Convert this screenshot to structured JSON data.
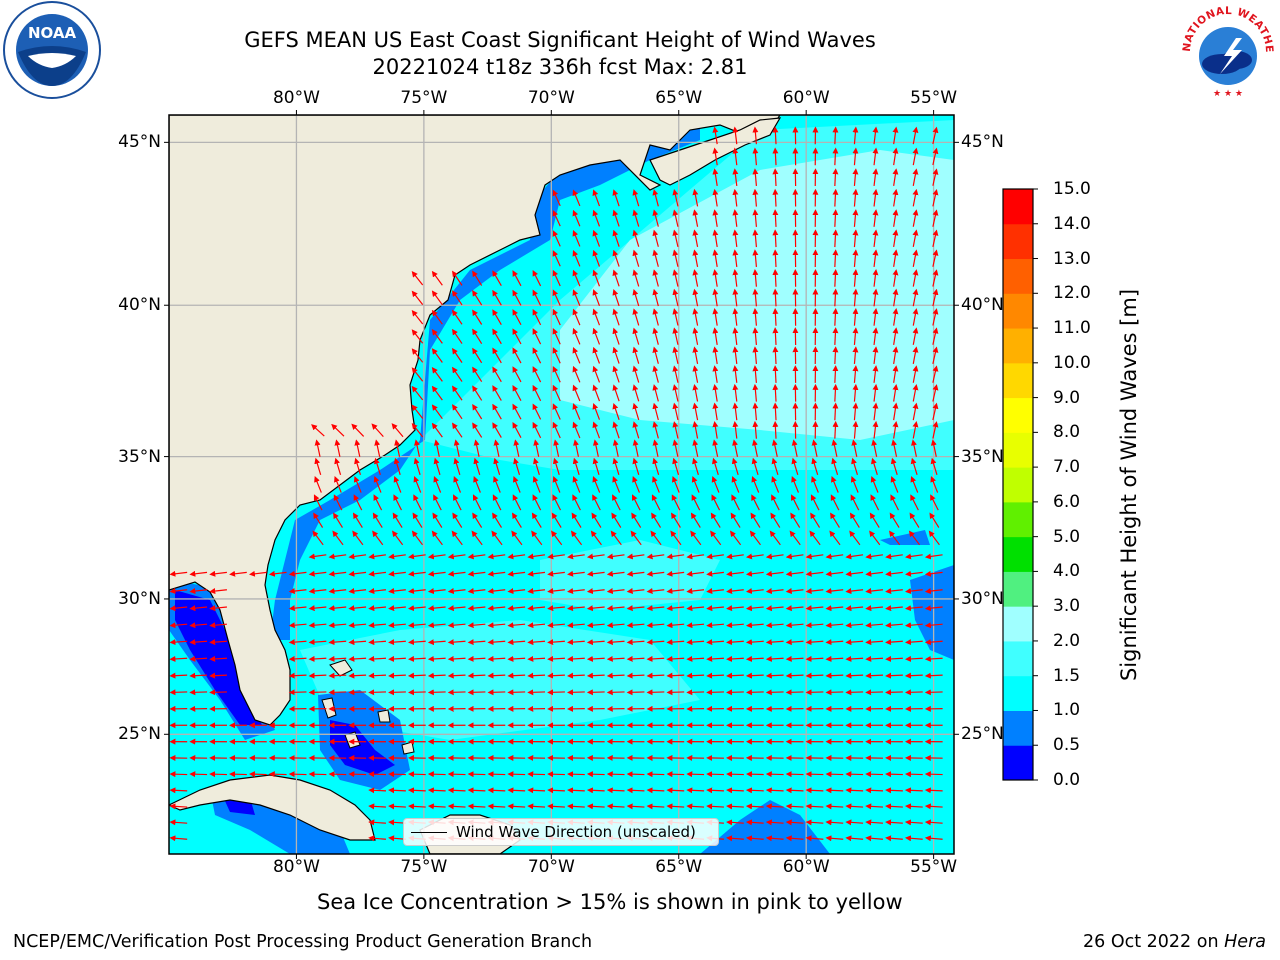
{
  "header": {
    "title_line1": "GEFS MEAN US East Coast Significant Height of Wind Waves",
    "title_line2": "20221024 t18z 336h fcst   Max: 2.81"
  },
  "logos": {
    "left": {
      "icon": "noaa-logo-icon",
      "text": "NOAA"
    },
    "right": {
      "icon": "nws-logo-icon",
      "text": "NATIONAL WEATHER SERVICE"
    }
  },
  "map": {
    "lon_range": [
      -85,
      -54.2
    ],
    "lat_range": [
      20.4,
      45.8
    ],
    "lon_ticks": [
      "80°W",
      "75°W",
      "70°W",
      "65°W",
      "60°W",
      "55°W"
    ],
    "lon_tick_values": [
      -80,
      -75,
      -70,
      -65,
      -60,
      -55
    ],
    "lat_ticks": [
      "45°N",
      "40°N",
      "35°N",
      "30°N",
      "25°N"
    ],
    "lat_tick_values": [
      45,
      40,
      35,
      30,
      25
    ],
    "gridlines": true,
    "land_color": "#efecdc",
    "arrow_color": "#ff0000",
    "legend_label": "Wind Wave Direction (unscaled)",
    "legend_placement": "bottom-center"
  },
  "colorbar": {
    "title": "Significant Height of Wind Waves [m]",
    "range": [
      0,
      15
    ],
    "levels": [
      0.0,
      0.5,
      1.0,
      1.5,
      2.0,
      3.0,
      4.0,
      5.0,
      6.0,
      7.0,
      8.0,
      9.0,
      10.0,
      11.0,
      12.0,
      13.0,
      14.0,
      15.0
    ],
    "tick_labels": [
      "0.0",
      "0.5",
      "1.0",
      "1.5",
      "2.0",
      "3.0",
      "4.0",
      "5.0",
      "6.0",
      "7.0",
      "8.0",
      "9.0",
      "10.0",
      "11.0",
      "12.0",
      "13.0",
      "14.0",
      "15.0"
    ],
    "colors": [
      "#0000ff",
      "#0080ff",
      "#00ffff",
      "#40ffff",
      "#a0ffff",
      "#50f080",
      "#00e000",
      "#60f000",
      "#c0ff00",
      "#e8ff00",
      "#ffff00",
      "#ffd800",
      "#ffb000",
      "#ff8800",
      "#ff6000",
      "#ff3000",
      "#ff0000"
    ]
  },
  "footer": {
    "ice_note": "Sea Ice Concentration > 15% is shown in pink to yellow",
    "credit": "NCEP/EMC/Verification Post Processing Product Generation Branch",
    "date": "26 Oct 2022 on",
    "host": "Hera"
  }
}
